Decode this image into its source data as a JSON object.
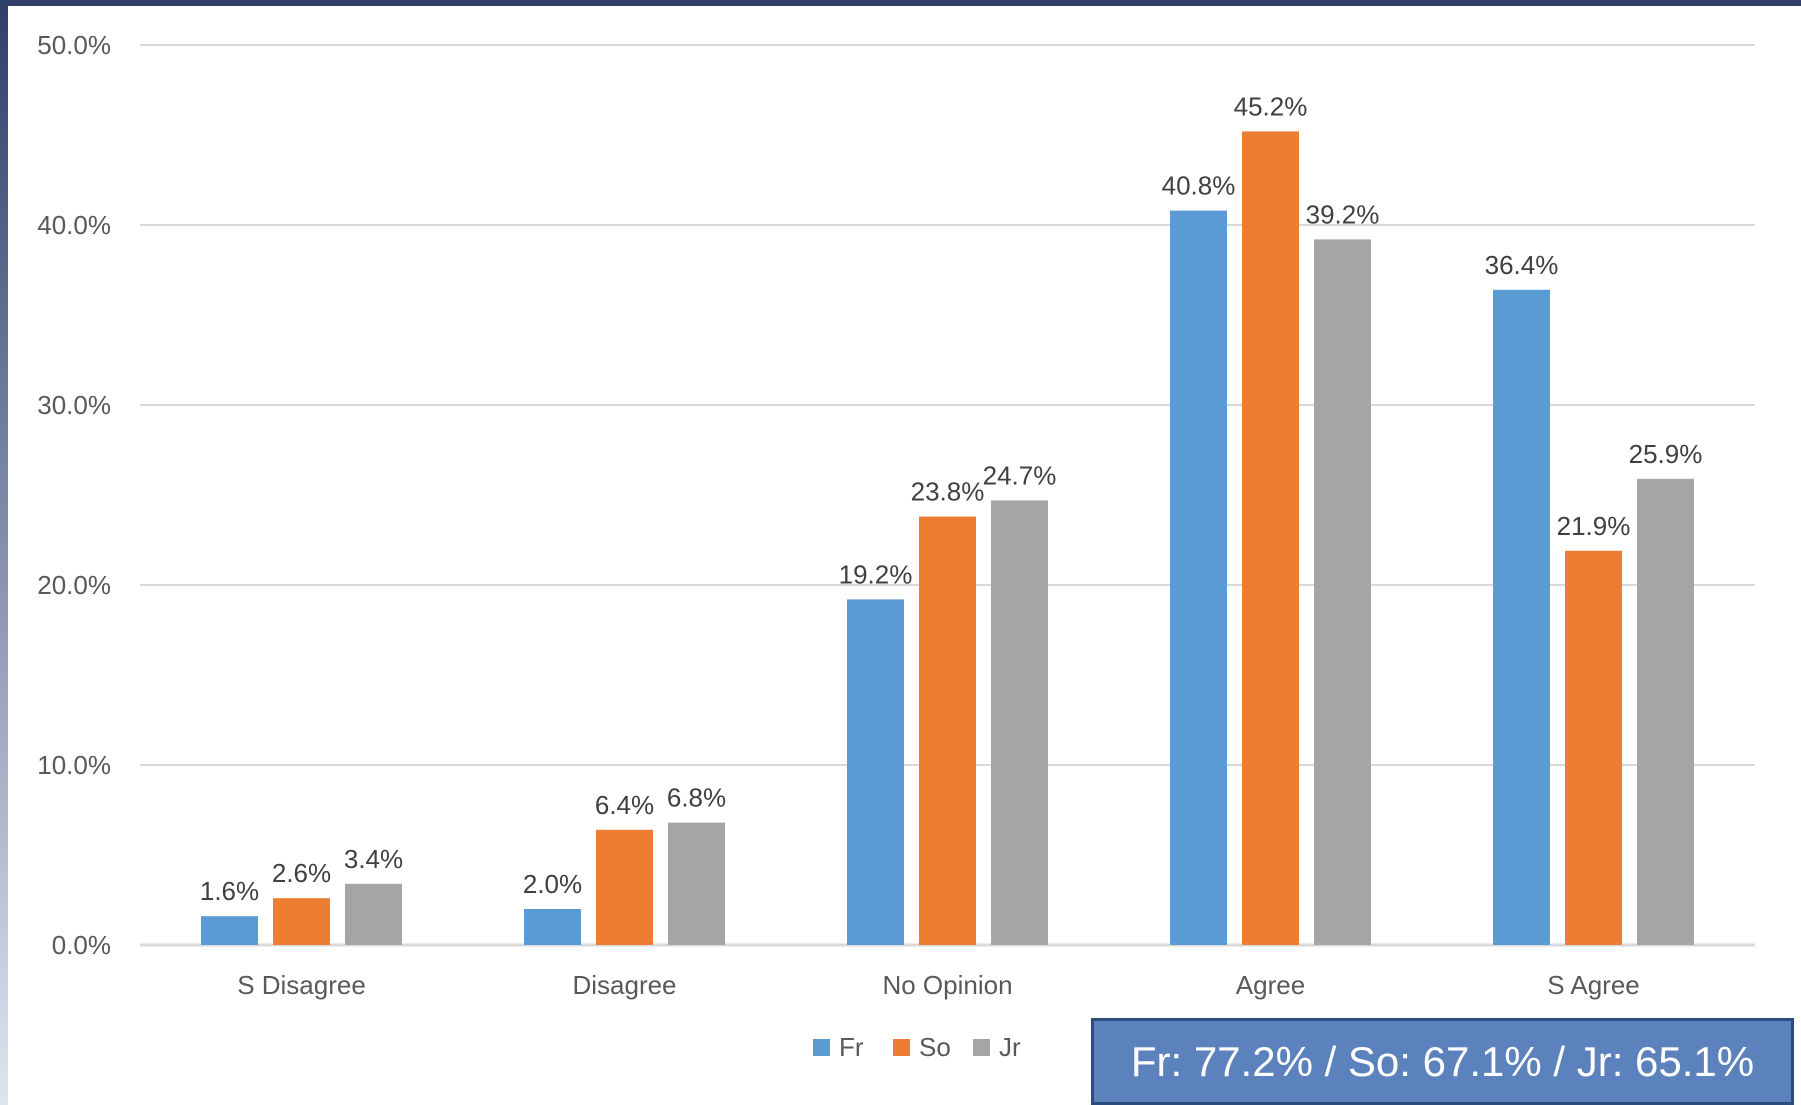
{
  "colors": {
    "fr": "#5b9bd5",
    "so": "#ed7d31",
    "jr": "#a5a5a5",
    "grid": "#d9d9d9",
    "summary_bg": "#5c82bd",
    "summary_border": "#2d4c80"
  },
  "chart_data": {
    "type": "bar",
    "title": "",
    "xlabel": "",
    "ylabel": "",
    "ylim": [
      0,
      50
    ],
    "grid": true,
    "legend_position": "bottom",
    "y_ticks": [
      "0.0%",
      "10.0%",
      "20.0%",
      "30.0%",
      "40.0%",
      "50.0%"
    ],
    "categories": [
      "S Disagree",
      "Disagree",
      "No Opinion",
      "Agree",
      "S Agree"
    ],
    "series": [
      {
        "name": "Fr",
        "color_key": "fr",
        "values": [
          1.6,
          2.0,
          19.2,
          40.8,
          36.4
        ],
        "labels": [
          "1.6%",
          "2.0%",
          "19.2%",
          "40.8%",
          "36.4%"
        ]
      },
      {
        "name": "So",
        "color_key": "so",
        "values": [
          2.6,
          6.4,
          23.8,
          45.2,
          21.9
        ],
        "labels": [
          "2.6%",
          "6.4%",
          "23.8%",
          "45.2%",
          "21.9%"
        ]
      },
      {
        "name": "Jr",
        "color_key": "jr",
        "values": [
          3.4,
          6.8,
          24.7,
          39.2,
          25.9
        ],
        "labels": [
          "3.4%",
          "6.8%",
          "24.7%",
          "39.2%",
          "25.9%"
        ]
      }
    ]
  },
  "summary": {
    "text": "Fr: 77.2% / So: 67.1% / Jr: 65.1%"
  }
}
